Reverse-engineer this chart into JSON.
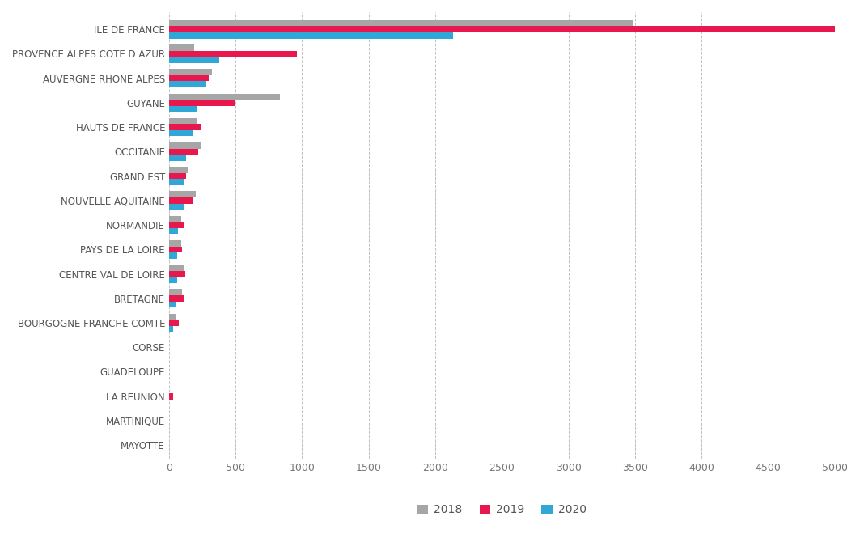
{
  "categories": [
    "ILE DE FRANCE",
    "PROVENCE ALPES COTE D AZUR",
    "AUVERGNE RHONE ALPES",
    "GUYANE",
    "HAUTS DE FRANCE",
    "OCCITANIE",
    "GRAND EST",
    "NOUVELLE AQUITAINE",
    "NORMANDIE",
    "PAYS DE LA LOIRE",
    "CENTRE VAL DE LOIRE",
    "BRETAGNE",
    "BOURGOGNE FRANCHE COMTE",
    "CORSE",
    "GUADELOUPE",
    "LA REUNION",
    "MARTINIQUE",
    "MAYOTTE"
  ],
  "values_2018": [
    3480,
    190,
    320,
    830,
    210,
    245,
    140,
    200,
    90,
    90,
    110,
    100,
    55,
    0,
    0,
    0,
    0,
    0
  ],
  "values_2019": [
    5020,
    960,
    300,
    490,
    240,
    220,
    130,
    185,
    110,
    100,
    120,
    110,
    75,
    0,
    0,
    30,
    0,
    0
  ],
  "values_2020": [
    2130,
    380,
    280,
    210,
    175,
    130,
    115,
    110,
    65,
    60,
    60,
    55,
    30,
    0,
    0,
    0,
    0,
    0
  ],
  "color_2018": "#a6a6a6",
  "color_2019": "#e8184e",
  "color_2020": "#30a7d6",
  "bar_height": 0.25,
  "xlim": [
    0,
    5000
  ],
  "xticks": [
    0,
    500,
    1000,
    1500,
    2000,
    2500,
    3000,
    3500,
    4000,
    4500,
    5000
  ],
  "xtick_labels": [
    "0",
    "500",
    "1000",
    "1500",
    "2000",
    "2500",
    "3000",
    "3500",
    "4000",
    "4500",
    "5000"
  ],
  "grid_color": "#c0c0c0",
  "background_color": "#ffffff",
  "label_fontsize": 8.5,
  "tick_fontsize": 9,
  "legend_labels": [
    "2018",
    "2019",
    "2020"
  ]
}
